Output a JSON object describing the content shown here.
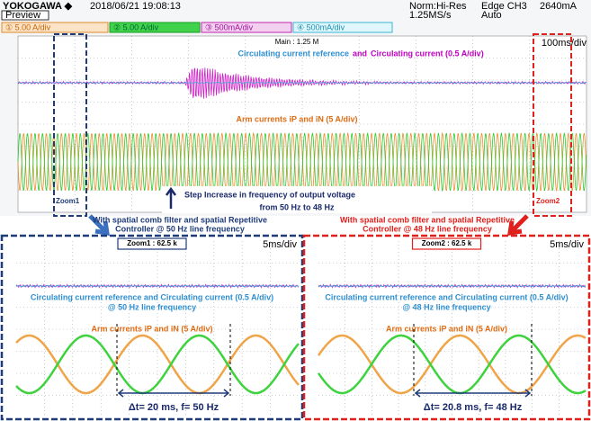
{
  "header": {
    "brand": "YOKOGAWA ◆",
    "datetime": "2018/06/21 19:08:13",
    "mode": "Preview",
    "acq": "Norm:Hi-Res",
    "rate": "1.25MS/s",
    "trigger": "Edge CH3",
    "level": "2640mA",
    "trig_mode": "Auto"
  },
  "channels": [
    "① 5.00 A/div",
    "② 5.00 A/div",
    "③ 500mA/div",
    "④ 500mA/div"
  ],
  "main": {
    "record": "Main : 1.25 M",
    "timebase": "100ms/div",
    "title_ref": "Circulating current reference",
    "title_and": "and",
    "title_cur": "Circulating current (0.5 A/div)",
    "arm": "Arm currents iP and iN (5 A/div)",
    "zoom1": "Zoom1",
    "zoom2": "Zoom2",
    "step_line1": "Step Increase in frequency of output voltage",
    "step_line2": "from 50 Hz to 48 Hz"
  },
  "notes": {
    "left": [
      "With spatial comb filter and spatial Repetitive",
      "Controller @ 50 Hz line frequency"
    ],
    "right": [
      "With spatial comb filter and spatial Repetitive",
      "Controller @ 48 Hz line frequency"
    ]
  },
  "zooms": [
    {
      "record": "Zoom1 : 62.5 k",
      "timebase": "5ms/div",
      "title": "Circulating current reference and Circulating current  (0.5 A/div)",
      "freq": "@ 50 Hz line frequency",
      "arm": "Arm currents iP and iN (5 A/div)",
      "delta": "Δt= 20 ms, f= 50 Hz"
    },
    {
      "record": "Zoom2 : 62.5 k",
      "timebase": "5ms/div",
      "title": "Circulating current reference and Circulating current  (0.5 A/div)",
      "freq": "@ 48 Hz line frequency",
      "arm": "Arm currents iP and iN (5 A/div)",
      "delta": "Δt= 20.8 ms, f= 48 Hz"
    }
  ]
}
